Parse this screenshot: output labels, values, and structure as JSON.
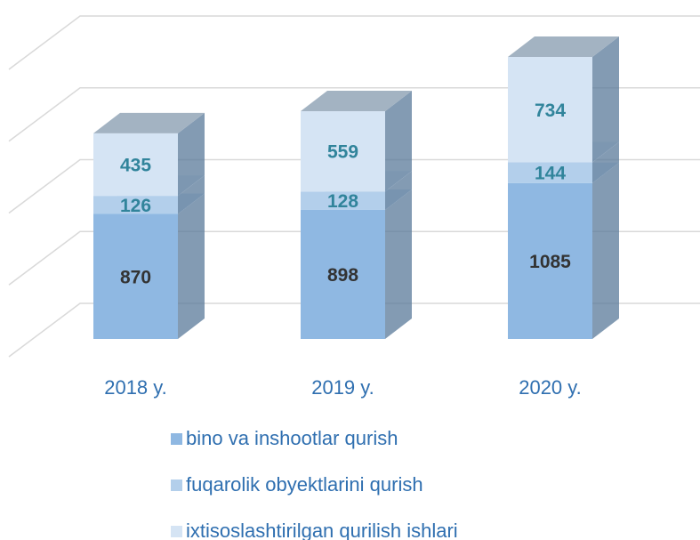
{
  "chart_data": {
    "type": "bar3d_stacked",
    "categories": [
      "2018 y.",
      "2019 y.",
      "2020 y."
    ],
    "series": [
      {
        "name": "bino va inshootlar qurish",
        "color": "#8fb8e2",
        "values": [
          870,
          898,
          1085
        ]
      },
      {
        "name": "fuqarolik obyektlarini qurish",
        "color": "#b3cfeb",
        "values": [
          126,
          128,
          144
        ]
      },
      {
        "name": "ixtisoslashtirilgan qurilish ishlari",
        "color": "#d5e4f4",
        "values": [
          435,
          559,
          734
        ]
      }
    ],
    "ylim": [
      0,
      2000
    ],
    "yticks": [
      0,
      500,
      1000,
      1500,
      2000
    ],
    "grid": true
  }
}
